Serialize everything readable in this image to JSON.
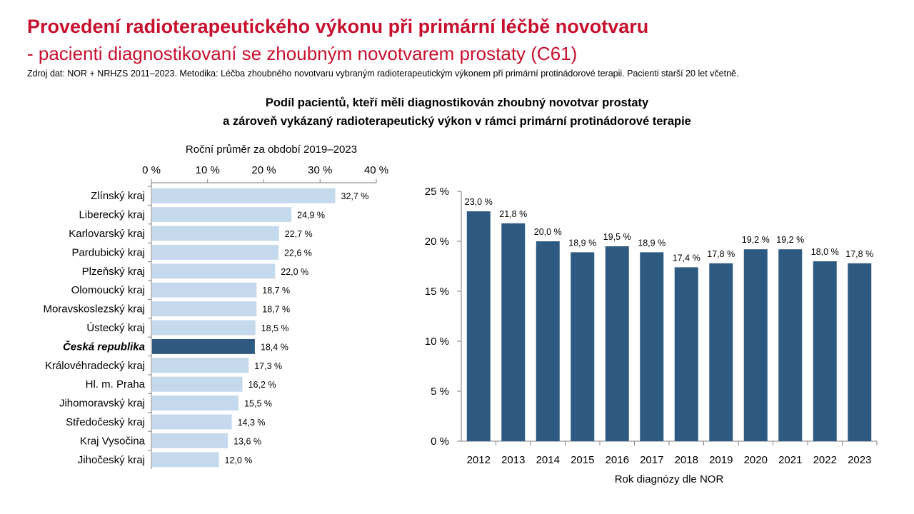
{
  "header": {
    "title": "Provedení radioterapeutického výkonu při primární léčbě novotvaru",
    "subtitle": "- pacienti diagnostikovaní se zhoubným novotvarem prostaty (C61)",
    "source": "Zdroj dat: NOR + NRHZS 2011–2023. Metodika: Léčba zhoubného novotvaru vybraným radioterapeutickým výkonem při primární protinádorové terapii. Pacienti starší 20 let včetně.",
    "chart_heading_line1": "Podíl pacientů, kteří měli diagnostikován zhoubný novotvar prostaty",
    "chart_heading_line2": "a zároveň vykázaný radioterapeutický výkon v rámci primární protinádorové terapie"
  },
  "colors": {
    "title": "#c8102e",
    "bar_light": "#c5d9ed",
    "bar_highlight": "#2e5a82",
    "bar_dark": "#2e5a82"
  },
  "chart_data": [
    {
      "type": "bar",
      "orientation": "horizontal",
      "title": "Roční průměr za období 2019–2023",
      "xlim": [
        0,
        40
      ],
      "ticks": [
        0,
        10,
        20,
        30,
        40
      ],
      "tick_labels": [
        "0 %",
        "10 %",
        "20 %",
        "30 %",
        "40 %"
      ],
      "axis_position": "top",
      "categories": [
        "Zlínský kraj",
        "Liberecký kraj",
        "Karlovarský kraj",
        "Pardubický kraj",
        "Plzeňský kraj",
        "Olomoucký kraj",
        "Moravskoslezský kraj",
        "Ústecký kraj",
        "Česká republika",
        "Královéhradecký kraj",
        "Hl. m. Praha",
        "Jihomoravský kraj",
        "Středočeský kraj",
        "Kraj Vysočina",
        "Jihočeský kraj"
      ],
      "values": [
        32.7,
        24.9,
        22.7,
        22.6,
        22.0,
        18.7,
        18.7,
        18.5,
        18.4,
        17.3,
        16.2,
        15.5,
        14.3,
        13.6,
        12.0
      ],
      "value_labels": [
        "32,7 %",
        "24,9 %",
        "22,7 %",
        "22,6 %",
        "22,0 %",
        "18,7 %",
        "18,7 %",
        "18,5 %",
        "18,4 %",
        "17,3 %",
        "16,2 %",
        "15,5 %",
        "14,3 %",
        "13,6 %",
        "12,0 %"
      ],
      "highlight": "Česká republika"
    },
    {
      "type": "bar",
      "orientation": "vertical",
      "xlabel": "Rok diagnózy dle NOR",
      "ylim": [
        0,
        25
      ],
      "ticks": [
        0,
        5,
        10,
        15,
        20,
        25
      ],
      "tick_labels": [
        "0 %",
        "5 %",
        "10 %",
        "15 %",
        "20 %",
        "25 %"
      ],
      "categories": [
        "2012",
        "2013",
        "2014",
        "2015",
        "2016",
        "2017",
        "2018",
        "2019",
        "2020",
        "2021",
        "2022",
        "2023"
      ],
      "values": [
        23.0,
        21.8,
        20.0,
        18.9,
        19.5,
        18.9,
        17.4,
        17.8,
        19.2,
        19.2,
        18.0,
        17.8
      ],
      "value_labels": [
        "23,0 %",
        "21,8 %",
        "20,0 %",
        "18,9 %",
        "19,5 %",
        "18,9 %",
        "17,4 %",
        "17,8 %",
        "19,2 %",
        "19,2 %",
        "18,0 %",
        "17,8 %"
      ]
    }
  ]
}
